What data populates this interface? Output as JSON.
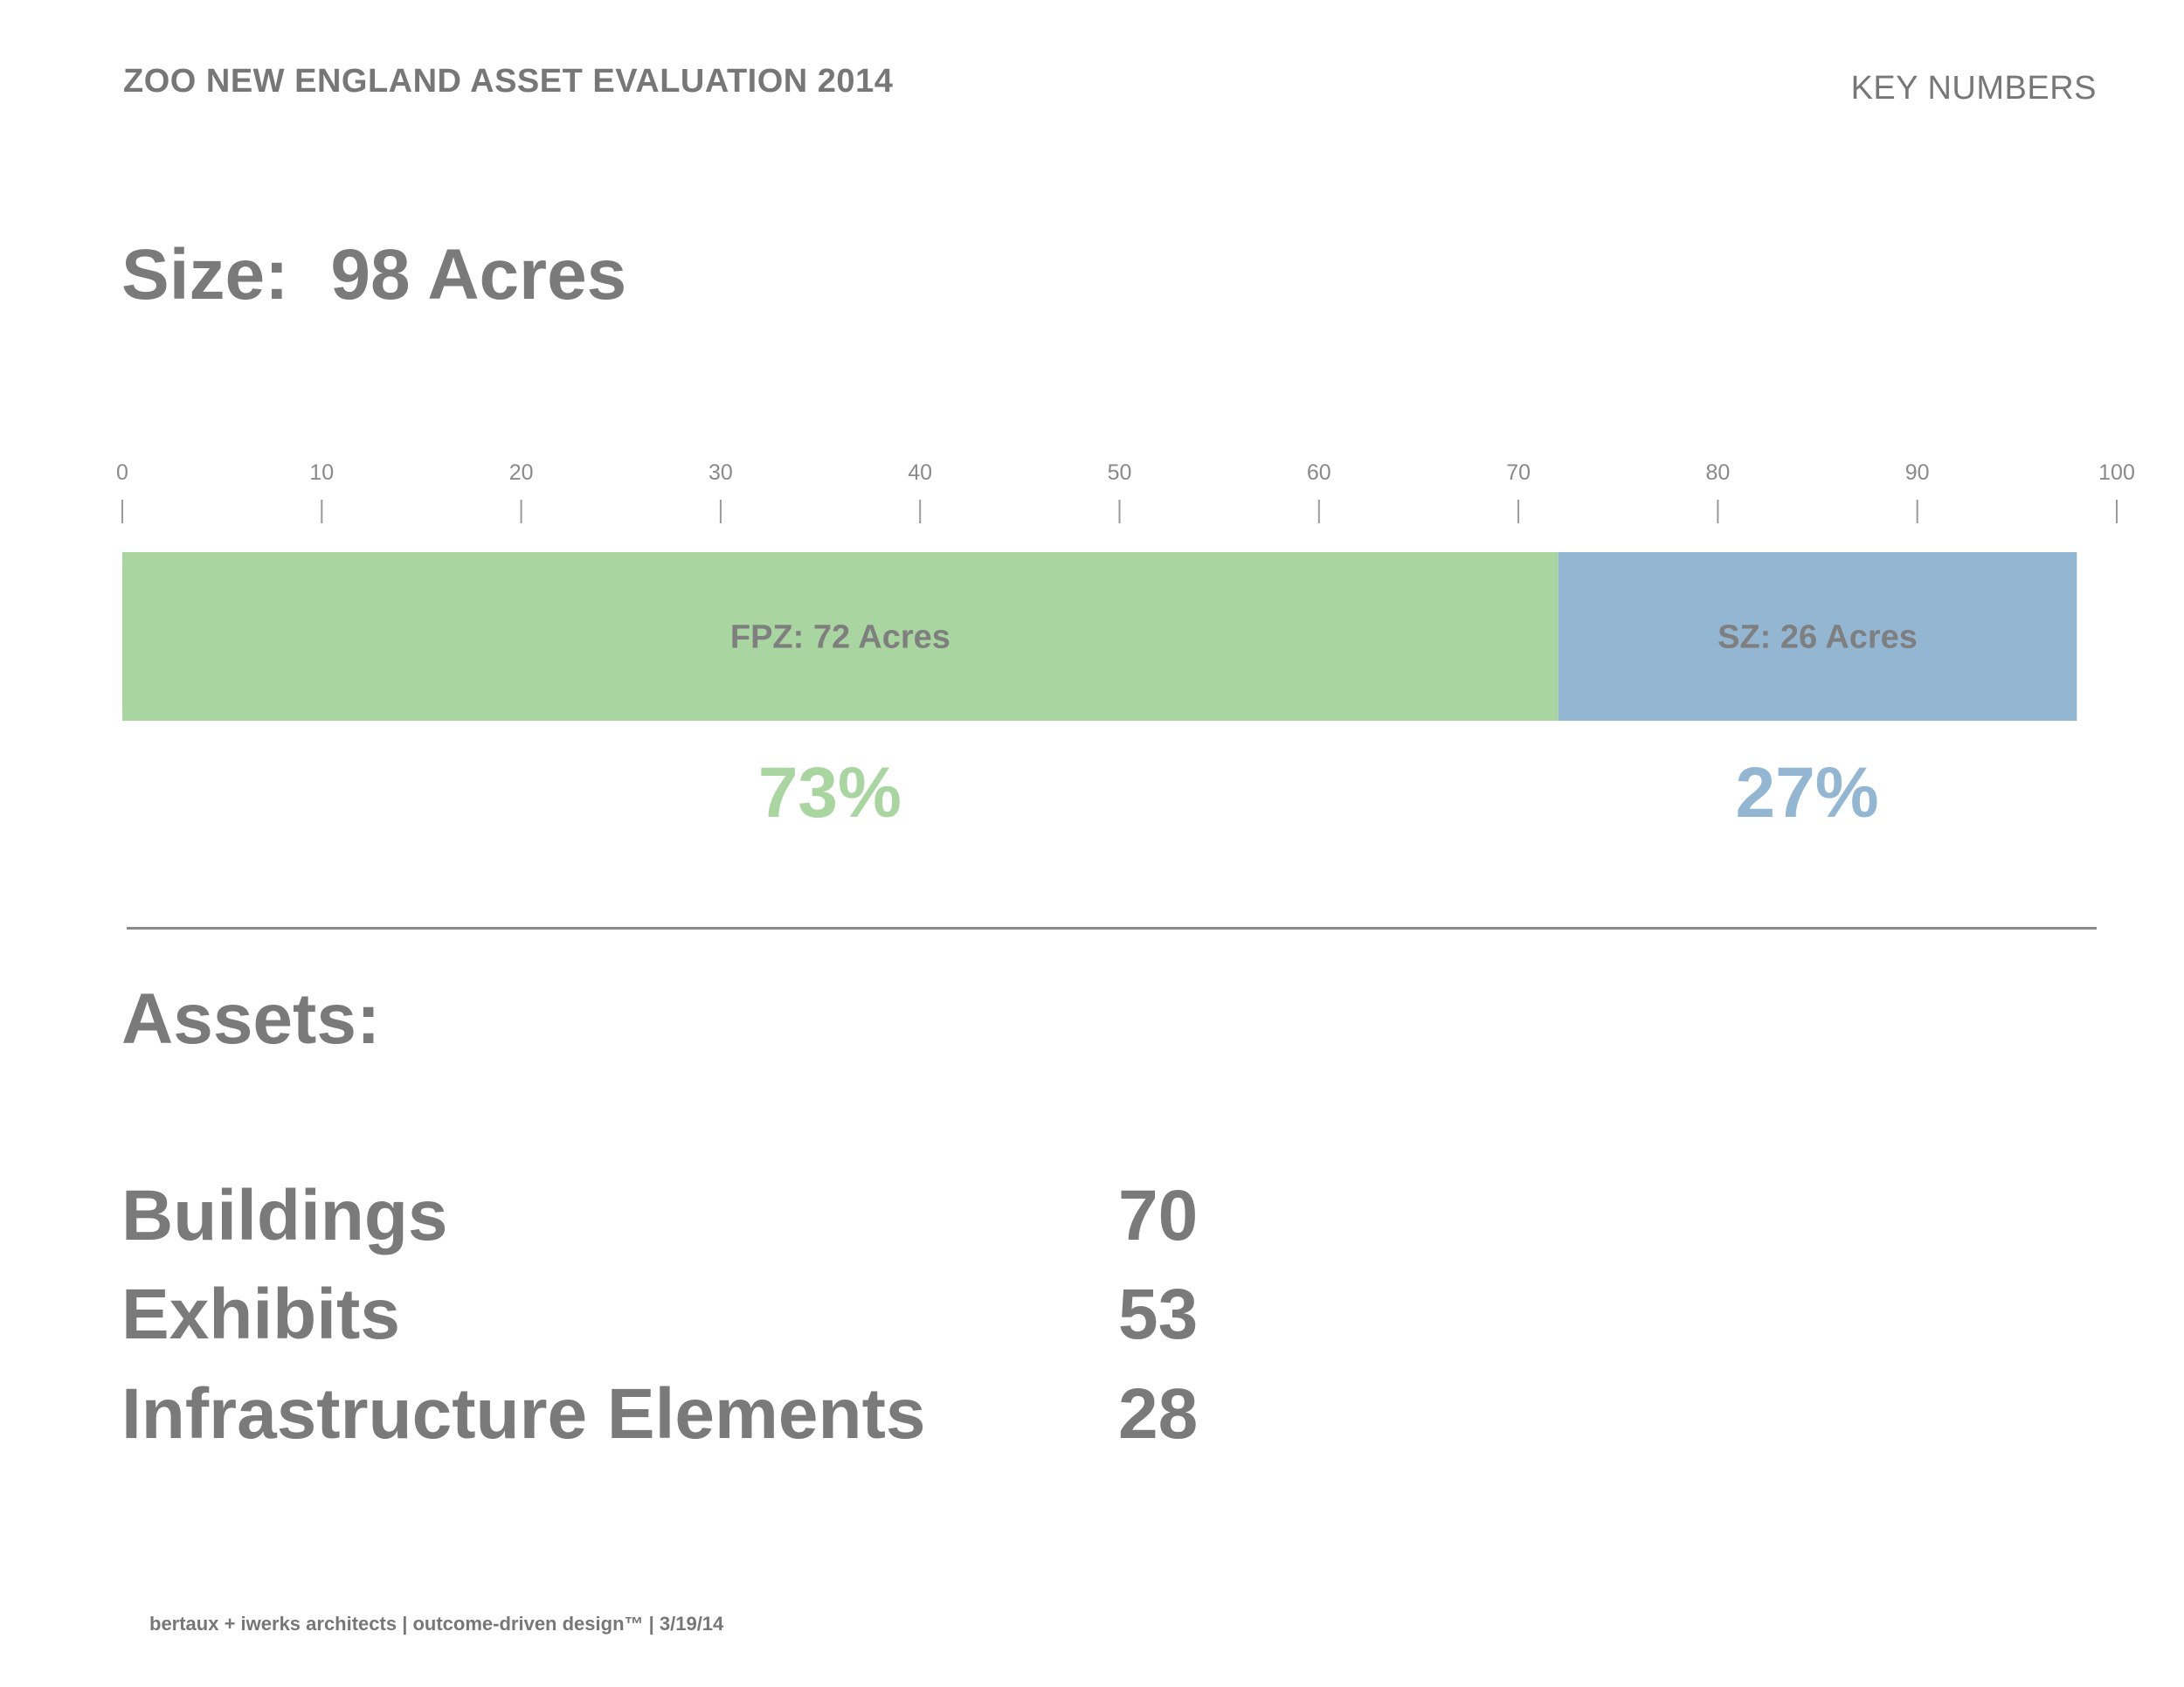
{
  "header": {
    "title": "ZOO NEW ENGLAND ASSET EVALUATION 2014",
    "section": "KEY NUMBERS"
  },
  "size": {
    "label": "Size:",
    "value": "98 Acres"
  },
  "chart_data": {
    "type": "bar",
    "orientation": "horizontal-stacked",
    "xlim": [
      0,
      100
    ],
    "ticks": [
      0,
      10,
      20,
      30,
      40,
      50,
      60,
      70,
      80,
      90,
      100
    ],
    "segments": [
      {
        "label": "FPZ: 72 Acres",
        "value": 72,
        "percent_label": "73%",
        "color": "#a8d5a0",
        "percent_color": "#a8d5a0"
      },
      {
        "label": "SZ: 26 Acres",
        "value": 26,
        "percent_label": "27%",
        "color": "#93b7d3",
        "percent_color": "#93b7d3"
      }
    ],
    "grid": false,
    "legend": "none"
  },
  "assets": {
    "heading": "Assets:",
    "rows": [
      {
        "label": "Buildings",
        "count": "70"
      },
      {
        "label": "Exhibits",
        "count": "53"
      },
      {
        "label": "Infrastructure Elements",
        "count": "28"
      }
    ]
  },
  "footer": {
    "text": "bertaux + iwerks architects | outcome-driven design™ | 3/19/14"
  },
  "colors": {
    "text": "#7a7a7a",
    "divider": "#8a8a8a",
    "fpz": "#a8d5a0",
    "sz": "#93b7d3"
  }
}
